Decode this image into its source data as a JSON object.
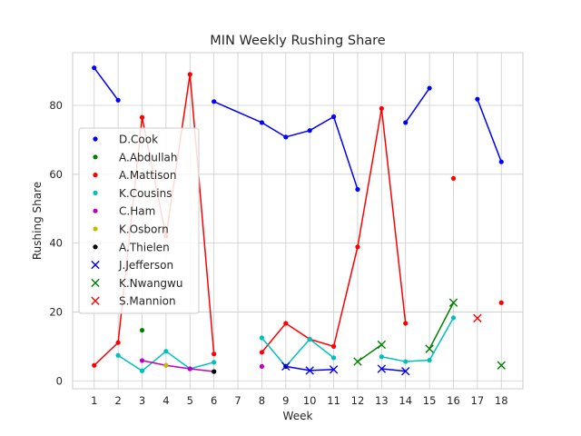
{
  "chart_data": {
    "type": "line",
    "title": "MIN Weekly Rushing Share",
    "xlabel": "Week",
    "ylabel": "Rushing Share",
    "x_ticks": [
      1,
      2,
      3,
      4,
      5,
      6,
      7,
      8,
      9,
      10,
      11,
      12,
      13,
      14,
      15,
      16,
      17,
      18
    ],
    "y_ticks": [
      0,
      20,
      40,
      60,
      80
    ],
    "xlim": [
      0.1,
      18.9
    ],
    "ylim": [
      -2.3,
      95.3
    ],
    "grid": true,
    "legend_position": "center-left",
    "series": [
      {
        "name": "D.Cook",
        "color": "#0000ff",
        "marker": "dot",
        "x": [
          1,
          2,
          null,
          6,
          8,
          9,
          10,
          11,
          12,
          null,
          14,
          15,
          null,
          17,
          18
        ],
        "y": [
          90.9,
          81.5,
          null,
          81.1,
          75,
          70.8,
          72.7,
          76.7,
          55.6,
          null,
          75,
          85,
          null,
          81.8,
          63.6
        ]
      },
      {
        "name": "A.Abdullah",
        "color": "#008000",
        "marker": "dot",
        "x": [
          3
        ],
        "y": [
          14.7
        ]
      },
      {
        "name": "A.Mattison",
        "color": "#ff0000",
        "marker": "dot",
        "x": [
          1,
          2,
          3,
          4,
          5,
          6,
          null,
          8,
          9,
          10,
          11,
          12,
          13,
          14,
          null,
          16,
          null,
          18
        ],
        "y": [
          4.5,
          11.1,
          76.5,
          42,
          89,
          7.8,
          null,
          8.3,
          16.7,
          12.1,
          10,
          38.9,
          79.1,
          16.7,
          null,
          58.8,
          null,
          22.7
        ]
      },
      {
        "name": "K.Cousins",
        "color": "#00bfbf",
        "marker": "dot",
        "x": [
          2,
          3,
          4,
          5,
          6,
          null,
          8,
          9,
          10,
          11,
          null,
          13,
          14,
          15,
          16
        ],
        "y": [
          7.4,
          2.9,
          8.6,
          3.5,
          5.4,
          null,
          12.5,
          4.2,
          12.1,
          6.7,
          null,
          7,
          5.6,
          6,
          18.3
        ]
      },
      {
        "name": "C.Ham",
        "color": "#bf00bf",
        "marker": "dot",
        "x": [
          3,
          4,
          5,
          6,
          null,
          8
        ],
        "y": [
          5.9,
          4.5,
          3.5,
          2.7,
          null,
          4.2
        ]
      },
      {
        "name": "K.Osborn",
        "color": "#bfbf00",
        "marker": "dot",
        "x": [
          4
        ],
        "y": [
          4.5
        ]
      },
      {
        "name": "A.Thielen",
        "color": "#000000",
        "marker": "dot",
        "x": [
          6,
          null,
          9
        ],
        "y": [
          2.7,
          null,
          4.2
        ]
      },
      {
        "name": "J.Jefferson",
        "color": "#0000ff",
        "marker": "x",
        "x": [
          9,
          10,
          11,
          null,
          13,
          14
        ],
        "y": [
          4.2,
          3,
          3.3,
          null,
          3.5,
          2.8
        ]
      },
      {
        "name": "K.Nwangwu",
        "color": "#008000",
        "marker": "x",
        "x": [
          12,
          13,
          null,
          15,
          16,
          null,
          18
        ],
        "y": [
          5.6,
          10.5,
          null,
          9.3,
          22.7,
          null,
          4.5
        ]
      },
      {
        "name": "S.Mannion",
        "color": "#ff0000",
        "marker": "x",
        "x": [
          17
        ],
        "y": [
          18.2
        ]
      }
    ]
  }
}
